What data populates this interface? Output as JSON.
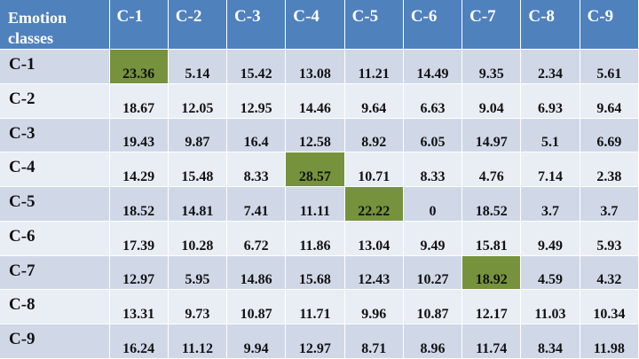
{
  "table": {
    "corner_label": "Emotion classes",
    "columns": [
      "C-1",
      "C-2",
      "C-3",
      "C-4",
      "C-5",
      "C-6",
      "C-7",
      "C-8",
      "C-9"
    ],
    "highlight_color": "#76923c",
    "header_color": "#4f81bd",
    "rows": [
      {
        "label": "C-1",
        "values": [
          "23.36",
          "5.14",
          "15.42",
          "13.08",
          "11.21",
          "14.49",
          "9.35",
          "2.34",
          "5.61"
        ],
        "highlight": [
          0
        ]
      },
      {
        "label": "C-2",
        "values": [
          "18.67",
          "12.05",
          "12.95",
          "14.46",
          "9.64",
          "6.63",
          "9.04",
          "6.93",
          "9.64"
        ],
        "highlight": []
      },
      {
        "label": "C-3",
        "values": [
          "19.43",
          "9.87",
          "16.4",
          "12.58",
          "8.92",
          "6.05",
          "14.97",
          "5.1",
          "6.69"
        ],
        "highlight": []
      },
      {
        "label": "C-4",
        "values": [
          "14.29",
          "15.48",
          "8.33",
          "28.57",
          "10.71",
          "8.33",
          "4.76",
          "7.14",
          "2.38"
        ],
        "highlight": [
          3
        ]
      },
      {
        "label": "C-5",
        "values": [
          "18.52",
          "14.81",
          "7.41",
          "11.11",
          "22.22",
          "0",
          "18.52",
          "3.7",
          "3.7"
        ],
        "highlight": [
          4
        ]
      },
      {
        "label": "C-6",
        "values": [
          "17.39",
          "10.28",
          "6.72",
          "11.86",
          "13.04",
          "9.49",
          "15.81",
          "9.49",
          "5.93"
        ],
        "highlight": []
      },
      {
        "label": "C-7",
        "values": [
          "12.97",
          "5.95",
          "14.86",
          "15.68",
          "12.43",
          "10.27",
          "18.92",
          "4.59",
          "4.32"
        ],
        "highlight": [
          6
        ]
      },
      {
        "label": "C-8",
        "values": [
          "13.31",
          "9.73",
          "10.87",
          "11.71",
          "9.96",
          "10.87",
          "12.17",
          "11.03",
          "10.34"
        ],
        "highlight": []
      },
      {
        "label": "C-9",
        "values": [
          "16.24",
          "11.12",
          "9.94",
          "12.97",
          "8.71",
          "8.96",
          "11.74",
          "8.34",
          "11.98"
        ],
        "highlight": []
      }
    ]
  }
}
